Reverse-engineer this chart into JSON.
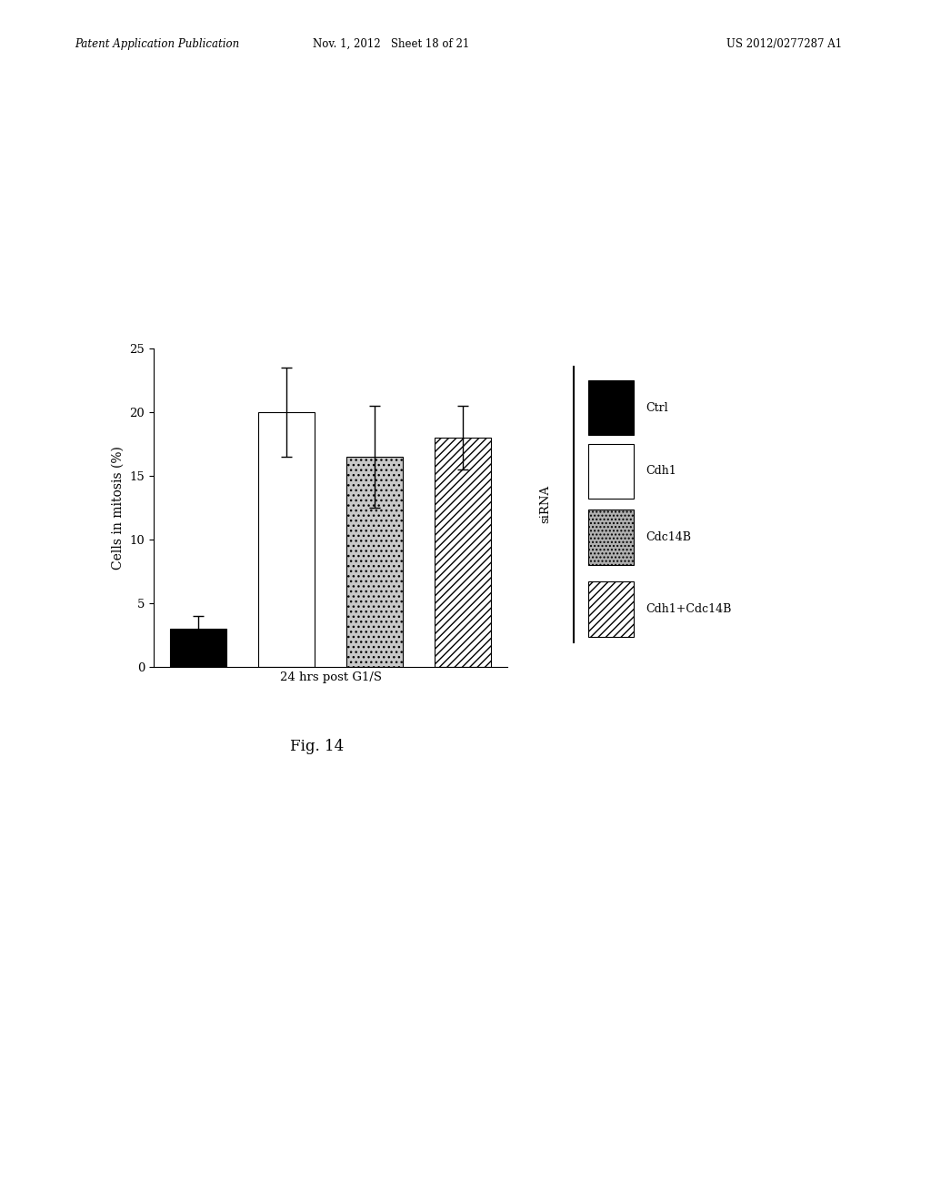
{
  "bars": [
    {
      "label": "Ctrl",
      "value": 3.0,
      "error": 1.0,
      "color": "black",
      "hatch": null
    },
    {
      "label": "Cdh1",
      "value": 20.0,
      "error": 3.5,
      "color": "white",
      "hatch": null
    },
    {
      "label": "Cdc14B",
      "value": 16.5,
      "error": 4.0,
      "color": "#b0b0b0",
      "hatch": "...."
    },
    {
      "label": "Cdh1+Cdc14B",
      "value": 18.0,
      "error": 2.5,
      "color": "white",
      "hatch": "////"
    }
  ],
  "ylabel": "Cells in mitosis (%)",
  "xlabel": "24 hrs post G1/S",
  "ylim": [
    0,
    25
  ],
  "yticks": [
    0,
    5,
    10,
    15,
    20,
    25
  ],
  "figure_caption": "Fig. 14",
  "legend_title": "siRNA",
  "bar_width": 0.55,
  "bar_spacing": 0.85,
  "background_color": "#ffffff",
  "header_left": "Patent Application Publication",
  "header_mid": "Nov. 1, 2012   Sheet 18 of 21",
  "header_right": "US 2012/0277287 A1",
  "legend_items": [
    {
      "label": "Ctrl",
      "color": "black",
      "hatch": null
    },
    {
      "label": "Cdh1",
      "color": "white",
      "hatch": null
    },
    {
      "label": "Cdc14B",
      "color": "#b0b0b0",
      "hatch": "...."
    },
    {
      "label": "Cdh1+Cdc14B",
      "color": "white",
      "hatch": "////"
    }
  ]
}
